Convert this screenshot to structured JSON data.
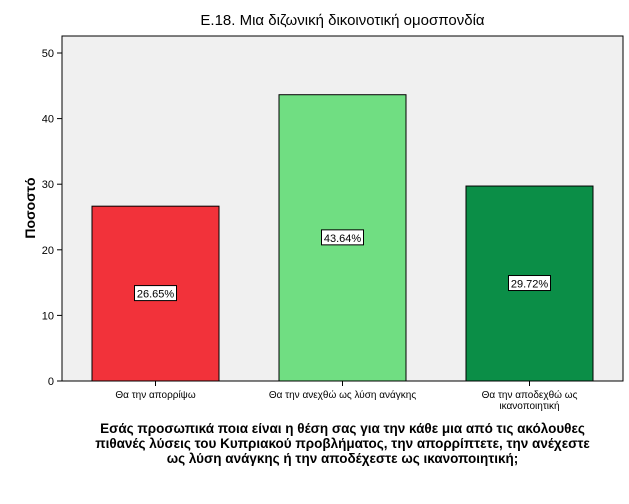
{
  "chart_data": {
    "type": "bar",
    "title": "Ε.18. Μια διζωνική δικοινοτική ομοσπονδία",
    "xlabel": "Εσάς προσωπικά ποια είναι η θέση σας για την κάθε μια από τις ακόλουθες\nπιθανές λύσεις του Κυπριακού προβλήματος, την απορρίπτετε, την ανέχεστε\nως λύση ανάγκης ή την αποδέχεστε ως ικανοποιητική;",
    "ylabel": "Ποσοστό",
    "categories": [
      "Θα την απορρίψω",
      "Θα την ανεχθώ ως λύση ανάγκης",
      "Θα την αποδεχθώ ως ικανοποιητική"
    ],
    "category_lines": [
      [
        "Θα την απορρίψω"
      ],
      [
        "Θα την ανεχθώ ως λύση ανάγκης"
      ],
      [
        "Θα την αποδεχθώ ως",
        "ικανοποιητική"
      ]
    ],
    "values": [
      26.65,
      43.64,
      29.72
    ],
    "data_labels": [
      "26.65%",
      "43.64%",
      "29.72%"
    ],
    "colors": [
      "#f2323a",
      "#70de82",
      "#0b8e47"
    ],
    "ylim": [
      0,
      50
    ],
    "yticks": [
      0,
      10,
      20,
      30,
      40,
      50
    ],
    "grid": false,
    "plot_background": "#f0f0f0"
  }
}
